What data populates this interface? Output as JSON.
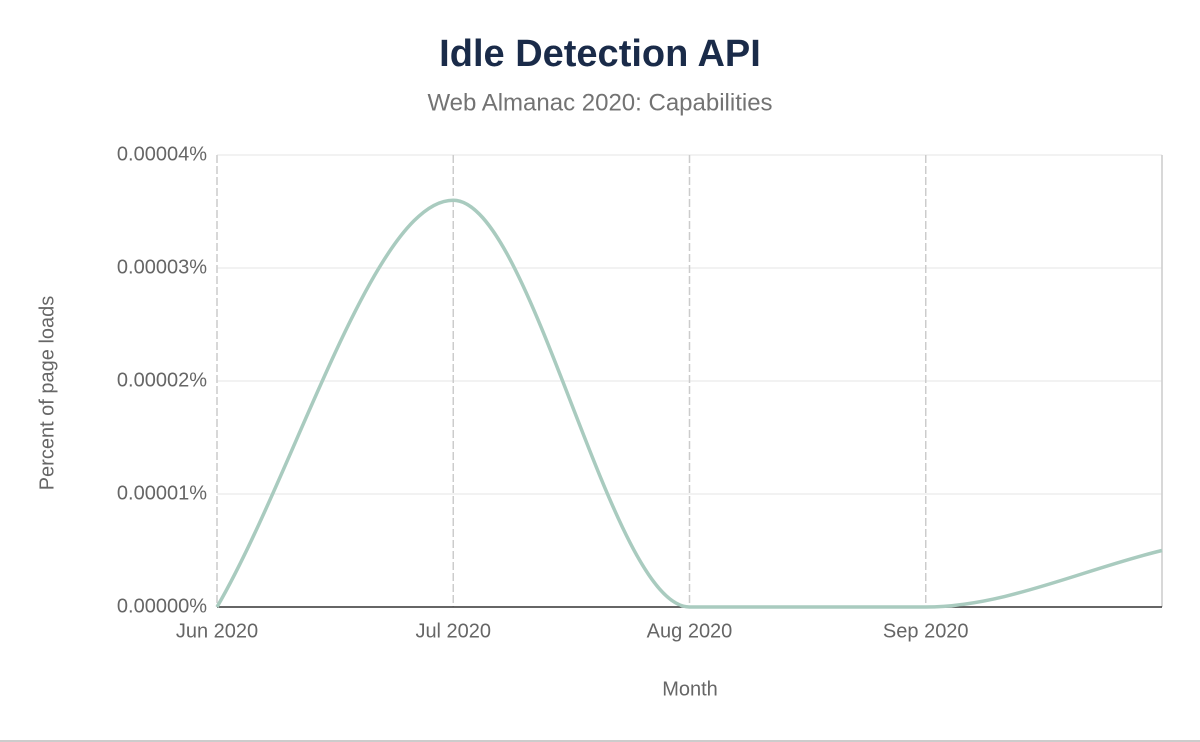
{
  "chart_data": {
    "type": "line",
    "title": "Idle Detection API",
    "subtitle": "Web Almanac 2020: Capabilities",
    "x_label": "Month",
    "y_label": "Percent of page loads",
    "categories": [
      "Jun 2020",
      "Jul 2020",
      "Aug 2020",
      "Sep 2020",
      null
    ],
    "series": [
      {
        "name": "Idle Detection API",
        "color": "#a9cbbf",
        "values": [
          0,
          3.6e-05,
          0,
          0,
          5e-06
        ]
      }
    ],
    "ylim": [
      0,
      4e-05
    ],
    "yticks": [
      {
        "value": 0,
        "label": "0.00000%"
      },
      {
        "value": 1e-05,
        "label": "0.00001%"
      },
      {
        "value": 2e-05,
        "label": "0.00002%"
      },
      {
        "value": 3e-05,
        "label": "0.00003%"
      },
      {
        "value": 4e-05,
        "label": "0.00004%"
      }
    ],
    "grid": true
  }
}
